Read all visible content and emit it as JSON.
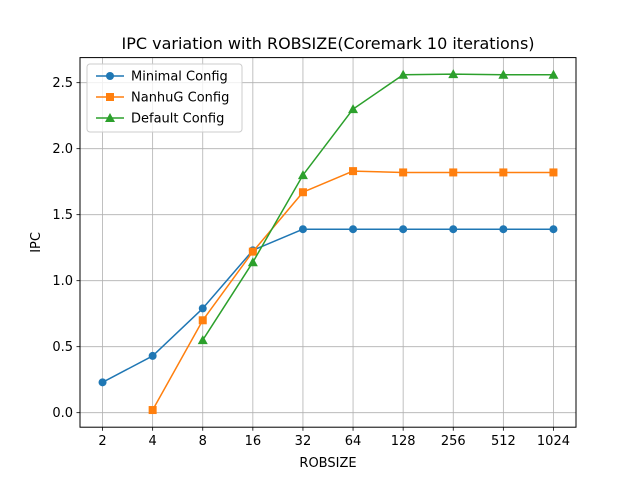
{
  "chart_data": {
    "type": "line",
    "title": "IPC variation with ROBSIZE(Coremark 10 iterations)",
    "xlabel": "ROBSIZE",
    "ylabel": "IPC",
    "categories": [
      "2",
      "4",
      "8",
      "16",
      "32",
      "64",
      "128",
      "256",
      "512",
      "1024"
    ],
    "yticks": [
      "0.0",
      "0.5",
      "1.0",
      "1.5",
      "2.0",
      "2.5"
    ],
    "ylim": [
      -0.11,
      2.69
    ],
    "grid": true,
    "legend_position": "upper-left",
    "series": [
      {
        "name": "Minimal Config",
        "color": "#1f77b4",
        "marker": "circle",
        "values": [
          0.23,
          0.43,
          0.79,
          1.23,
          1.39,
          1.39,
          1.39,
          1.39,
          1.39,
          1.39
        ]
      },
      {
        "name": "NanhuG Config",
        "color": "#ff7f0e",
        "marker": "square",
        "values": [
          null,
          0.02,
          0.7,
          1.22,
          1.67,
          1.83,
          1.82,
          1.82,
          1.82,
          1.82
        ]
      },
      {
        "name": "Default Config",
        "color": "#2ca02c",
        "marker": "triangle",
        "values": [
          null,
          null,
          0.55,
          1.14,
          1.8,
          2.3,
          2.56,
          2.565,
          2.56,
          2.56
        ]
      }
    ]
  }
}
